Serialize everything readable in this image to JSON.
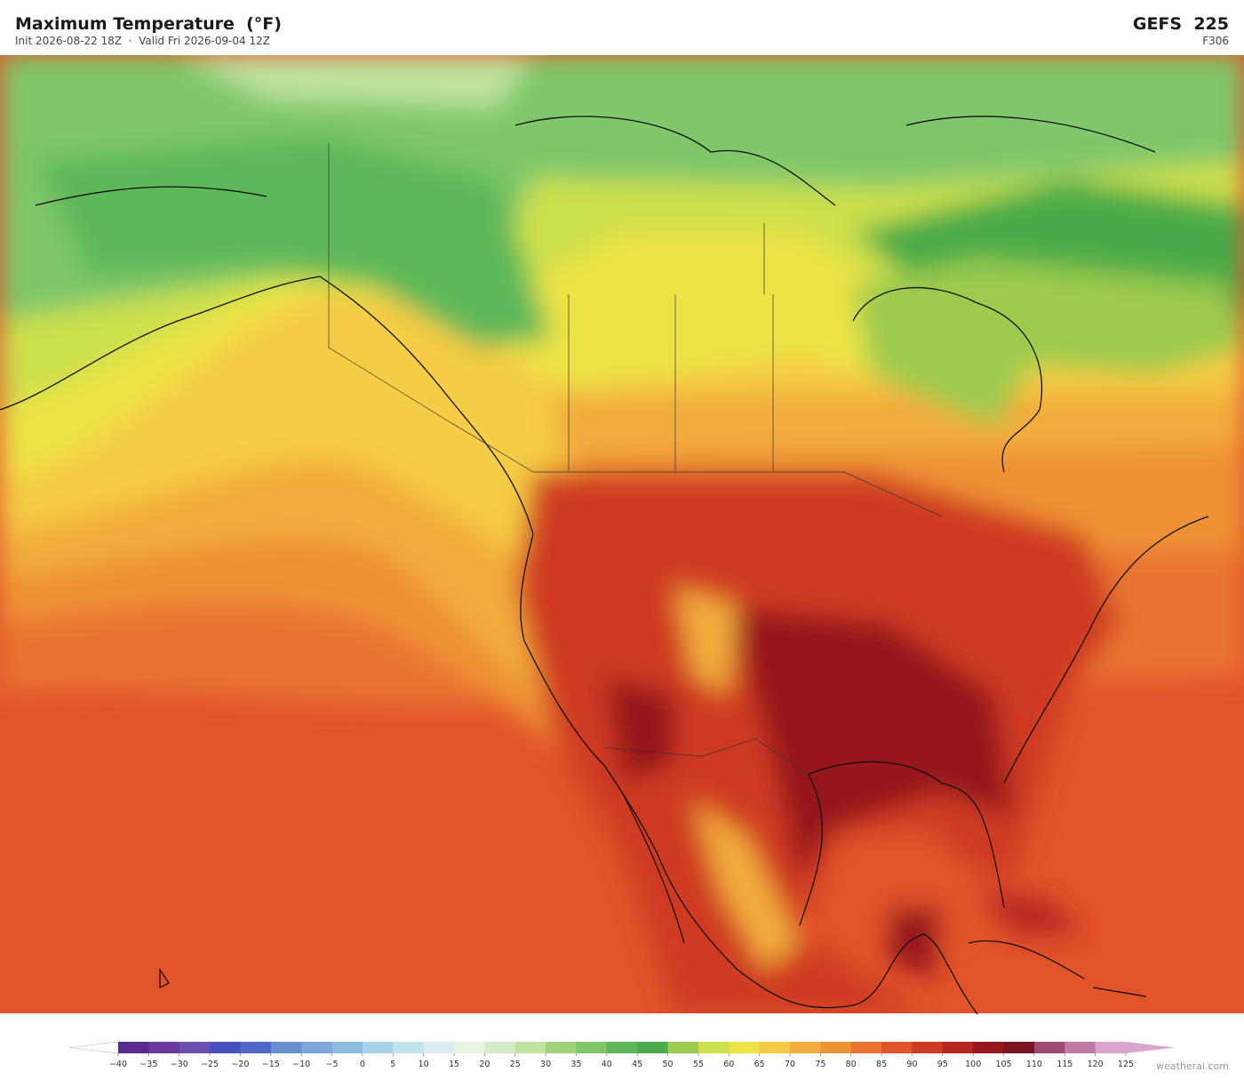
{
  "header": {
    "title": "Maximum Temperature  (°F)",
    "subtitle": "Init 2026-08-22 18Z  ·  Valid Fri 2026-09-04 12Z",
    "model": "GEFS  225",
    "forecast_hour": "F306"
  },
  "colorbar": {
    "lim": [
      -40,
      125
    ],
    "ticks": [
      {
        "value": -40,
        "label": "−40"
      },
      {
        "value": -35,
        "label": "−35"
      },
      {
        "value": -30,
        "label": "−30"
      },
      {
        "value": -25,
        "label": "−25"
      },
      {
        "value": -20,
        "label": "−20"
      },
      {
        "value": -15,
        "label": "−15"
      },
      {
        "value": -10,
        "label": "−10"
      },
      {
        "value": -5,
        "label": "−5"
      },
      0,
      5,
      10,
      15,
      20,
      25,
      30,
      35,
      40,
      45,
      50,
      55,
      60,
      65,
      70,
      75,
      80,
      85,
      90,
      95,
      100,
      105,
      110,
      115,
      120,
      125
    ],
    "colors": [
      "#5b2a8e",
      "#6a3a9c",
      "#6a4fb0",
      "#4a4fc0",
      "#4e67c8",
      "#6a8fd0",
      "#7fa6da",
      "#8fbde0",
      "#a7d2ea",
      "#c3e2ef",
      "#dcedf0",
      "#e9f4e4",
      "#d3ebc7",
      "#bfe39e",
      "#9fd47c",
      "#7fc76a",
      "#5db85a",
      "#4aab4a",
      "#9ccb4d",
      "#cde04d",
      "#ece347",
      "#f5cc45",
      "#f2ad3e",
      "#ee9236",
      "#e97330",
      "#e2532a",
      "#cf3a23",
      "#b52620",
      "#96181c",
      "#7a1420",
      "#9c4a70",
      "#c07aa6",
      "#d9a5cf"
    ],
    "under_color": "#ffffff",
    "over_color": "#d9a5cf"
  },
  "footer": {
    "watermark": "weatherai.com"
  }
}
